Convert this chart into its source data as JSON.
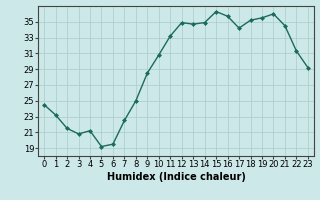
{
  "x": [
    0,
    1,
    2,
    3,
    4,
    5,
    6,
    7,
    8,
    9,
    10,
    11,
    12,
    13,
    14,
    15,
    16,
    17,
    18,
    19,
    20,
    21,
    22,
    23
  ],
  "y": [
    24.5,
    23.2,
    21.5,
    20.8,
    21.2,
    19.2,
    19.5,
    22.5,
    25.0,
    28.5,
    30.8,
    33.2,
    34.9,
    34.7,
    34.9,
    36.3,
    35.7,
    34.2,
    35.2,
    35.5,
    36.0,
    34.5,
    31.3,
    29.2
  ],
  "line_color": "#1a6b5a",
  "marker": "D",
  "marker_size": 2.0,
  "bg_color": "#cce8e8",
  "grid_color": "#aacccc",
  "grid_color_major": "#b8d8d8",
  "xlabel": "Humidex (Indice chaleur)",
  "ylim": [
    18,
    37
  ],
  "xlim": [
    -0.5,
    23.5
  ],
  "yticks": [
    19,
    21,
    23,
    25,
    27,
    29,
    31,
    33,
    35
  ],
  "xticks": [
    0,
    1,
    2,
    3,
    4,
    5,
    6,
    7,
    8,
    9,
    10,
    11,
    12,
    13,
    14,
    15,
    16,
    17,
    18,
    19,
    20,
    21,
    22,
    23
  ],
  "tick_font_size": 6.0,
  "label_font_size": 7.0,
  "linewidth": 1.0
}
